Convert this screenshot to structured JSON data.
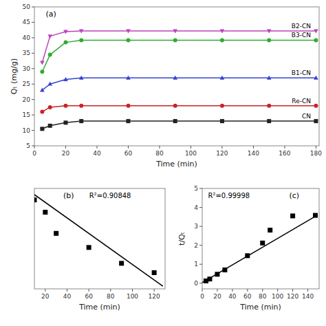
{
  "chart_data": [
    {
      "type": "line",
      "title": "(a)",
      "x_label": "Time (min)",
      "y_label": "Qₜ (mg/g)",
      "x": [
        5,
        10,
        20,
        30,
        60,
        90,
        120,
        150,
        180
      ],
      "series": [
        {
          "name": "B2-CN",
          "color": "#BB44BB",
          "marker": "triangle-down",
          "values": [
            32.0,
            40.5,
            42.0,
            42.2,
            42.2,
            42.2,
            42.2,
            42.2,
            42.2
          ]
        },
        {
          "name": "B3-CN",
          "color": "#33AA33",
          "marker": "circle",
          "values": [
            29.0,
            34.5,
            38.5,
            39.2,
            39.2,
            39.2,
            39.2,
            39.2,
            39.2
          ]
        },
        {
          "name": "B1-CN",
          "color": "#3344CC",
          "marker": "triangle-up",
          "values": [
            23.0,
            25.0,
            26.5,
            27.0,
            27.0,
            27.0,
            27.0,
            27.0,
            27.0
          ]
        },
        {
          "name": "Re-CN",
          "color": "#CC2222",
          "marker": "circle",
          "values": [
            16.0,
            17.5,
            18.0,
            18.0,
            18.0,
            18.0,
            18.0,
            18.0,
            18.0
          ]
        },
        {
          "name": "CN",
          "color": "#222222",
          "marker": "square",
          "values": [
            10.5,
            11.5,
            12.5,
            13.0,
            13.0,
            13.0,
            13.0,
            13.0,
            13.0
          ]
        }
      ],
      "xlim": [
        0,
        182
      ],
      "ylim": [
        5,
        50
      ],
      "xticks": [
        0,
        20,
        40,
        60,
        80,
        100,
        120,
        140,
        160,
        180
      ],
      "yticks": [
        5,
        10,
        15,
        20,
        25,
        30,
        35,
        40,
        45,
        50
      ]
    },
    {
      "type": "scatter",
      "title": "(b)",
      "annotations": [
        "R²=0.90848"
      ],
      "x_label": "Time (min)",
      "series": [
        {
          "type": "scatter",
          "color": "#000000",
          "marker": "square",
          "x": [
            10,
            20,
            30,
            60,
            90,
            120
          ],
          "values": [
            4.55,
            3.85,
            2.65,
            1.85,
            0.95,
            0.42
          ]
        },
        {
          "type": "line",
          "color": "#000000",
          "x": [
            10,
            128
          ],
          "values": [
            4.85,
            -0.35
          ]
        }
      ],
      "xlim": [
        10,
        130
      ],
      "ylim": [
        -0.5,
        5.2
      ],
      "xticks": [
        20,
        40,
        60,
        80,
        100,
        120
      ],
      "tick_labels": "x"
    },
    {
      "type": "scatter",
      "title": "(c)",
      "annotations": [
        "R²=0.99998"
      ],
      "x_label": "Time (min)",
      "y_label": "t/Qₜ",
      "series": [
        {
          "type": "scatter",
          "color": "#000000",
          "marker": "square",
          "x": [
            5,
            10,
            20,
            30,
            60,
            80,
            90,
            120,
            150
          ],
          "values": [
            0.12,
            0.22,
            0.47,
            0.7,
            1.45,
            2.12,
            2.8,
            3.55,
            3.58
          ]
        },
        {
          "type": "line",
          "color": "#000000",
          "x": [
            0,
            153
          ],
          "values": [
            0.03,
            3.6
          ]
        }
      ],
      "xlim": [
        0,
        155
      ],
      "ylim": [
        -0.3,
        5.0
      ],
      "xticks": [
        0,
        20,
        40,
        60,
        80,
        100,
        120,
        140
      ],
      "yticks": [
        0,
        1,
        2,
        3,
        4,
        5
      ]
    }
  ]
}
